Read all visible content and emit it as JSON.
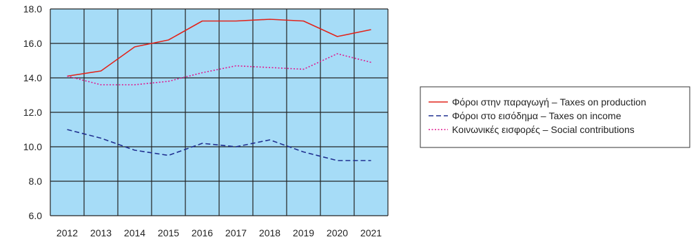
{
  "chart_data": {
    "type": "line",
    "title": "",
    "xlabel": "",
    "ylabel": "",
    "categories": [
      "2012",
      "2013",
      "2014",
      "2015",
      "2016",
      "2017",
      "2018",
      "2019",
      "2020",
      "2021"
    ],
    "yticks": [
      "6.0",
      "8.0",
      "10.0",
      "12.0",
      "14.0",
      "16.0",
      "18.0"
    ],
    "ylim": [
      6,
      18
    ],
    "grid": true,
    "legend_position": "right",
    "plot_background": "#a6dcf7",
    "series": [
      {
        "name": "Φόροι στην παραγωγή – Taxes on production",
        "style": "solid",
        "color": "#e2231a",
        "values": [
          14.1,
          14.4,
          15.8,
          16.2,
          17.3,
          17.3,
          17.4,
          17.3,
          16.4,
          16.8
        ]
      },
      {
        "name": "Φόροι στο εισόδημα – Taxes on income",
        "style": "dashed",
        "color": "#1f2e8f",
        "values": [
          11.0,
          10.5,
          9.8,
          9.5,
          10.2,
          10.0,
          10.4,
          9.7,
          9.2,
          9.2
        ]
      },
      {
        "name": "Κοινωνικές εισφορές – Social contributions",
        "style": "dotted",
        "color": "#e0148c",
        "values": [
          14.1,
          13.6,
          13.6,
          13.8,
          14.3,
          14.7,
          14.6,
          14.5,
          15.4,
          14.9
        ]
      }
    ]
  }
}
